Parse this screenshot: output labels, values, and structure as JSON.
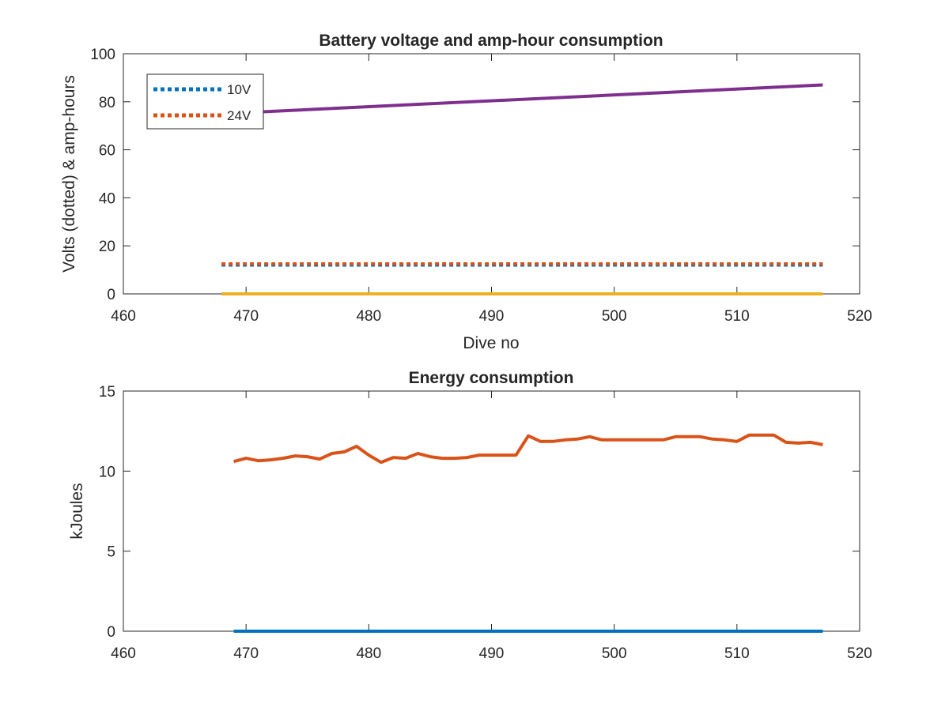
{
  "chart_data": [
    {
      "type": "line",
      "title": "Battery voltage and amp-hour consumption",
      "xlabel": "Dive no",
      "ylabel": "Volts (dotted) & amp-hours",
      "xlim": [
        460,
        520
      ],
      "ylim": [
        0,
        100
      ],
      "xticks": [
        460,
        470,
        480,
        490,
        500,
        510,
        520
      ],
      "yticks": [
        0,
        20,
        40,
        60,
        80,
        100
      ],
      "legend_position": "top-left",
      "series": [
        {
          "name": "10V",
          "style": "dotted",
          "color": "#0072BD",
          "x": [
            468,
            517
          ],
          "values": [
            12.0,
            12.0
          ]
        },
        {
          "name": "24V",
          "style": "dotted",
          "color": "#D95319",
          "x": [
            468,
            517
          ],
          "values": [
            12.5,
            12.5
          ]
        },
        {
          "style": "solid",
          "color": "#EDB120",
          "x": [
            468,
            517
          ],
          "values": [
            0,
            0
          ]
        },
        {
          "style": "solid",
          "color": "#7E2F8E",
          "x": [
            468,
            517
          ],
          "values": [
            75.0,
            87.0
          ]
        }
      ]
    },
    {
      "type": "line",
      "title": "Energy consumption",
      "xlabel": "",
      "ylabel": "kJoules",
      "xlim": [
        460,
        520
      ],
      "ylim": [
        0,
        15
      ],
      "xticks": [
        460,
        470,
        480,
        490,
        500,
        510,
        520
      ],
      "yticks": [
        0,
        5,
        10,
        15
      ],
      "series": [
        {
          "style": "solid",
          "color": "#0072BD",
          "x": [
            469,
            517
          ],
          "values": [
            0,
            0
          ]
        },
        {
          "style": "solid",
          "color": "#D95319",
          "x": [
            469,
            470,
            471,
            472,
            473,
            474,
            475,
            476,
            477,
            478,
            479,
            480,
            481,
            482,
            483,
            484,
            485,
            486,
            487,
            488,
            489,
            490,
            491,
            492,
            493,
            494,
            495,
            496,
            497,
            498,
            499,
            500,
            501,
            502,
            503,
            504,
            505,
            506,
            507,
            508,
            509,
            510,
            511,
            512,
            513,
            514,
            515,
            516,
            517
          ],
          "values": [
            10.6,
            10.8,
            10.65,
            10.7,
            10.8,
            10.95,
            10.9,
            10.75,
            11.1,
            11.2,
            11.55,
            11.0,
            10.55,
            10.85,
            10.8,
            11.1,
            10.9,
            10.8,
            10.8,
            10.85,
            11.0,
            11.0,
            11.0,
            11.0,
            12.2,
            11.85,
            11.85,
            11.95,
            12.0,
            12.15,
            11.95,
            11.95,
            11.95,
            11.95,
            11.95,
            11.95,
            12.15,
            12.15,
            12.15,
            12.0,
            11.95,
            11.85,
            12.25,
            12.25,
            12.25,
            11.8,
            11.75,
            11.8,
            11.65
          ]
        }
      ]
    }
  ]
}
